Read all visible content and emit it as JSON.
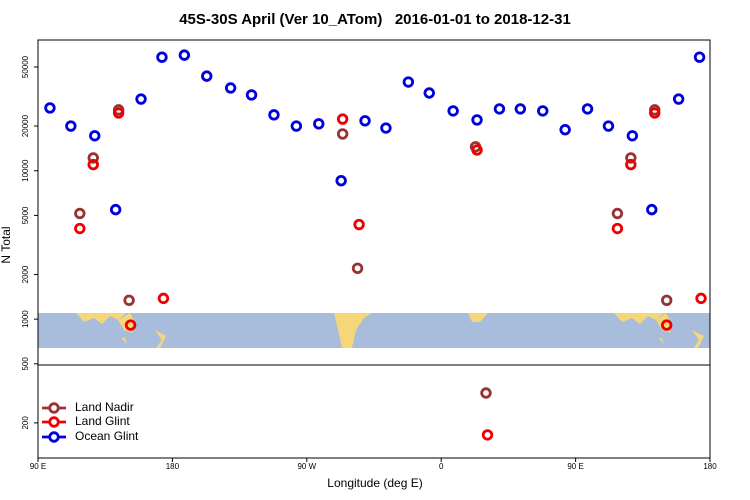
{
  "chart_data": {
    "type": "scatter",
    "title": "45S-30S April (Ver 10_ATom)   2016-01-01 to 2018-12-31",
    "x_label": "Longitude (deg E)",
    "y_label": "N Total",
    "log_y": true,
    "legend": "bottom-left",
    "xlim": [
      90,
      540
    ],
    "ylim": [
      116,
      76000
    ],
    "xticks": [
      {
        "value": 90,
        "label": "90 E"
      },
      180,
      {
        "value": 270,
        "label": "90 W"
      },
      {
        "value": 360,
        "label": "0"
      },
      {
        "value": 450,
        "label": "90 E"
      },
      {
        "value": 540,
        "label": "180"
      }
    ],
    "yticks": [
      200,
      500,
      1000,
      2000,
      5000,
      10000,
      20000,
      50000
    ],
    "series": [
      {
        "name": "Land Nadir",
        "color": "#993333",
        "x": [
          118,
          127,
          144,
          151,
          294,
          304,
          383,
          390,
          478,
          487,
          503,
          511
        ],
        "values": [
          5150,
          12200,
          25700,
          1340,
          17700,
          2200,
          14500,
          318,
          5150,
          12200,
          25700,
          1340
        ]
      },
      {
        "name": "Land Glint",
        "color": "#ee0000",
        "x": [
          118,
          127,
          144,
          152,
          174,
          294,
          305,
          384,
          391,
          478,
          487,
          503,
          511,
          534
        ],
        "values": [
          4080,
          11000,
          24500,
          912,
          1380,
          22300,
          4340,
          13800,
          166,
          4080,
          11000,
          24500,
          912,
          1380
        ]
      },
      {
        "name": "Ocean Glint",
        "color": "#0000dd",
        "x": [
          98,
          112,
          128,
          142,
          159,
          173,
          188,
          203,
          219,
          233,
          248,
          263,
          278,
          293,
          309,
          323,
          338,
          352,
          368,
          384,
          399,
          413,
          428,
          443,
          458,
          472,
          488,
          501,
          519,
          533
        ],
        "values": [
          26500,
          20000,
          17200,
          5470,
          30400,
          58200,
          60100,
          43400,
          36100,
          32400,
          23800,
          20000,
          20700,
          8570,
          21700,
          19400,
          39600,
          33400,
          25300,
          22000,
          26100,
          26100,
          25300,
          18900,
          26100,
          20000,
          17200,
          5470,
          30400,
          58200
        ]
      }
    ]
  }
}
